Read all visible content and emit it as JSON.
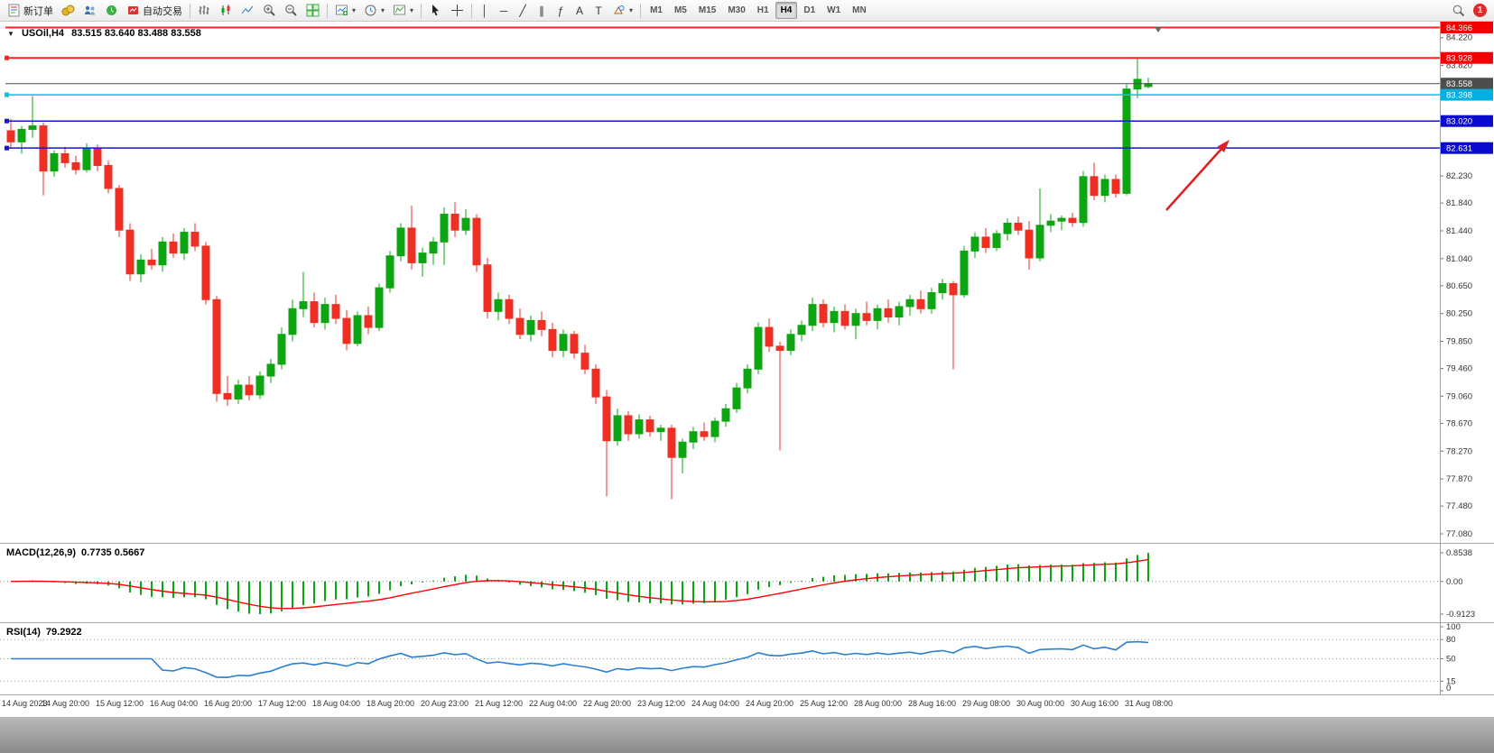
{
  "toolbar": {
    "new_order_label": "新订单",
    "auto_trading_label": "自动交易",
    "timeframes": [
      "M1",
      "M5",
      "M15",
      "M30",
      "H1",
      "H4",
      "D1",
      "W1",
      "MN"
    ],
    "active_timeframe": "H4",
    "line_tools": [
      {
        "name": "vertical-line-tool",
        "glyph": "│"
      },
      {
        "name": "horizontal-line-tool",
        "glyph": "─"
      },
      {
        "name": "trendline-tool",
        "glyph": "╱"
      },
      {
        "name": "equidistant-channel-tool",
        "glyph": "∥"
      },
      {
        "name": "fibonacci-tool",
        "glyph": "ƒ"
      },
      {
        "name": "text-tool",
        "glyph": "A"
      },
      {
        "name": "text-label-tool",
        "glyph": "T"
      }
    ],
    "notification_count": "1"
  },
  "chart_header": {
    "symbol_period": "USOil,H4",
    "ohlc": "83.515 83.640 83.488 83.558"
  },
  "indicators": {
    "macd_title": "MACD(12,26,9)",
    "macd_values": "0.7735 0.5667",
    "rsi_title": "RSI(14)",
    "rsi_value": "79.2922"
  },
  "chart_data": {
    "type": "candlestick",
    "symbol": "USOil",
    "timeframe": "H4",
    "price_range": [
      76.95,
      84.45
    ],
    "axis_ticks": [
      "84.220",
      "83.820",
      "82.230",
      "81.840",
      "81.440",
      "81.040",
      "80.650",
      "80.250",
      "79.850",
      "79.460",
      "79.060",
      "78.670",
      "78.270",
      "77.870",
      "77.480",
      "77.080"
    ],
    "levels": [
      {
        "price": 84.366,
        "label": "84.366",
        "color": "#ff2222",
        "badge": "#f40000",
        "width": 2,
        "marker": false
      },
      {
        "price": 83.928,
        "label": "83.928",
        "color": "#ff2222",
        "badge": "#f40000",
        "width": 2,
        "marker": true
      },
      {
        "price": 83.558,
        "label": "83.558",
        "color": "#4d4d4d",
        "badge": "#4d4d4d",
        "width": 1,
        "marker": false
      },
      {
        "price": 83.398,
        "label": "83.398",
        "color": "#00c3f5",
        "badge": "#00b0e0",
        "width": 1.5,
        "marker": true
      },
      {
        "price": 83.02,
        "label": "83.020",
        "color": "#1515dd",
        "badge": "#0b0bd0",
        "width": 1.5,
        "marker": true
      },
      {
        "price": 82.631,
        "label": "82.631",
        "color": "#1515dd",
        "badge": "#0b0bd0",
        "width": 1.5,
        "marker": true
      }
    ],
    "candles": [
      [
        82.88,
        83.05,
        82.62,
        82.72
      ],
      [
        82.72,
        82.95,
        82.55,
        82.9
      ],
      [
        82.9,
        83.38,
        82.78,
        82.95
      ],
      [
        82.95,
        83.0,
        81.95,
        82.3
      ],
      [
        82.3,
        82.6,
        82.22,
        82.55
      ],
      [
        82.55,
        82.65,
        82.35,
        82.42
      ],
      [
        82.42,
        82.52,
        82.25,
        82.32
      ],
      [
        82.32,
        82.7,
        82.28,
        82.62
      ],
      [
        82.62,
        82.68,
        82.3,
        82.38
      ],
      [
        82.38,
        82.45,
        81.98,
        82.05
      ],
      [
        82.05,
        82.1,
        81.35,
        81.45
      ],
      [
        81.45,
        81.55,
        80.72,
        80.82
      ],
      [
        80.82,
        81.1,
        80.7,
        81.02
      ],
      [
        81.02,
        81.18,
        80.88,
        80.95
      ],
      [
        80.95,
        81.35,
        80.85,
        81.28
      ],
      [
        81.28,
        81.4,
        81.05,
        81.12
      ],
      [
        81.12,
        81.48,
        81.02,
        81.42
      ],
      [
        81.42,
        81.55,
        81.15,
        81.22
      ],
      [
        81.22,
        81.28,
        80.38,
        80.45
      ],
      [
        80.45,
        80.5,
        78.98,
        79.1
      ],
      [
        79.1,
        79.35,
        78.92,
        79.02
      ],
      [
        79.02,
        79.3,
        78.95,
        79.22
      ],
      [
        79.22,
        79.35,
        79.0,
        79.08
      ],
      [
        79.08,
        79.42,
        79.02,
        79.35
      ],
      [
        79.35,
        79.6,
        79.25,
        79.52
      ],
      [
        79.52,
        80.05,
        79.45,
        79.95
      ],
      [
        79.95,
        80.45,
        79.85,
        80.32
      ],
      [
        80.32,
        80.85,
        80.2,
        80.42
      ],
      [
        80.42,
        80.55,
        80.05,
        80.12
      ],
      [
        80.12,
        80.48,
        80.02,
        80.38
      ],
      [
        80.38,
        80.52,
        80.1,
        80.18
      ],
      [
        80.18,
        80.3,
        79.72,
        79.82
      ],
      [
        79.82,
        80.28,
        79.78,
        80.22
      ],
      [
        80.22,
        80.35,
        79.95,
        80.05
      ],
      [
        80.05,
        80.68,
        80.0,
        80.62
      ],
      [
        80.62,
        81.15,
        80.55,
        81.08
      ],
      [
        81.08,
        81.55,
        81.0,
        81.48
      ],
      [
        81.48,
        81.8,
        80.88,
        80.98
      ],
      [
        80.98,
        81.2,
        80.78,
        81.12
      ],
      [
        81.12,
        81.35,
        80.95,
        81.28
      ],
      [
        81.28,
        81.78,
        80.95,
        81.68
      ],
      [
        81.68,
        81.85,
        81.35,
        81.45
      ],
      [
        81.45,
        81.75,
        81.38,
        81.62
      ],
      [
        81.62,
        81.68,
        80.85,
        80.95
      ],
      [
        80.95,
        81.05,
        80.18,
        80.28
      ],
      [
        80.28,
        80.55,
        80.15,
        80.45
      ],
      [
        80.45,
        80.52,
        80.1,
        80.18
      ],
      [
        80.18,
        80.32,
        79.88,
        79.95
      ],
      [
        79.95,
        80.22,
        79.85,
        80.15
      ],
      [
        80.15,
        80.28,
        79.92,
        80.02
      ],
      [
        80.02,
        80.12,
        79.62,
        79.72
      ],
      [
        79.72,
        80.02,
        79.62,
        79.95
      ],
      [
        79.95,
        80.0,
        79.6,
        79.68
      ],
      [
        79.68,
        79.8,
        79.38,
        79.45
      ],
      [
        79.45,
        79.52,
        78.95,
        79.05
      ],
      [
        79.05,
        79.15,
        77.62,
        78.42
      ],
      [
        78.42,
        78.88,
        78.35,
        78.78
      ],
      [
        78.78,
        78.85,
        78.42,
        78.52
      ],
      [
        78.52,
        78.8,
        78.45,
        78.72
      ],
      [
        78.72,
        78.78,
        78.48,
        78.55
      ],
      [
        78.55,
        78.65,
        78.42,
        78.6
      ],
      [
        78.6,
        78.65,
        77.58,
        78.18
      ],
      [
        78.18,
        78.45,
        77.95,
        78.4
      ],
      [
        78.4,
        78.62,
        78.3,
        78.55
      ],
      [
        78.55,
        78.68,
        78.42,
        78.48
      ],
      [
        78.48,
        78.75,
        78.4,
        78.7
      ],
      [
        78.7,
        78.95,
        78.62,
        78.88
      ],
      [
        78.88,
        79.25,
        78.82,
        79.18
      ],
      [
        79.18,
        79.52,
        79.1,
        79.45
      ],
      [
        79.45,
        80.12,
        79.38,
        80.05
      ],
      [
        80.05,
        80.18,
        79.7,
        79.78
      ],
      [
        79.78,
        79.85,
        78.28,
        79.72
      ],
      [
        79.72,
        80.02,
        79.65,
        79.95
      ],
      [
        79.95,
        80.15,
        79.85,
        80.08
      ],
      [
        80.08,
        80.48,
        80.0,
        80.38
      ],
      [
        80.38,
        80.45,
        80.05,
        80.12
      ],
      [
        80.12,
        80.35,
        79.98,
        80.28
      ],
      [
        80.28,
        80.38,
        80.02,
        80.08
      ],
      [
        80.08,
        80.32,
        79.88,
        80.25
      ],
      [
        80.25,
        80.42,
        80.08,
        80.15
      ],
      [
        80.15,
        80.38,
        80.02,
        80.32
      ],
      [
        80.32,
        80.45,
        80.12,
        80.2
      ],
      [
        80.2,
        80.42,
        80.08,
        80.35
      ],
      [
        80.35,
        80.52,
        80.22,
        80.45
      ],
      [
        80.45,
        80.58,
        80.25,
        80.32
      ],
      [
        80.32,
        80.62,
        80.25,
        80.55
      ],
      [
        80.55,
        80.75,
        80.45,
        80.68
      ],
      [
        80.68,
        80.72,
        79.45,
        80.52
      ],
      [
        80.52,
        81.22,
        80.48,
        81.15
      ],
      [
        81.15,
        81.42,
        81.05,
        81.35
      ],
      [
        81.35,
        81.48,
        81.12,
        81.2
      ],
      [
        81.2,
        81.45,
        81.15,
        81.4
      ],
      [
        81.4,
        81.62,
        81.3,
        81.55
      ],
      [
        81.55,
        81.65,
        81.38,
        81.45
      ],
      [
        81.45,
        81.58,
        80.88,
        81.05
      ],
      [
        81.05,
        82.05,
        81.0,
        81.52
      ],
      [
        81.52,
        81.68,
        81.42,
        81.58
      ],
      [
        81.58,
        81.66,
        81.45,
        81.62
      ],
      [
        81.62,
        81.7,
        81.5,
        81.56
      ],
      [
        81.56,
        82.3,
        81.5,
        82.22
      ],
      [
        82.22,
        82.42,
        81.88,
        81.95
      ],
      [
        81.95,
        82.25,
        81.85,
        82.18
      ],
      [
        82.18,
        82.25,
        81.92,
        81.98
      ],
      [
        81.98,
        83.55,
        81.95,
        83.48
      ],
      [
        83.48,
        83.92,
        83.35,
        83.62
      ],
      [
        83.515,
        83.64,
        83.488,
        83.558
      ]
    ],
    "label_every": 5,
    "time_labels": [
      "14 Aug 2023",
      "14 Aug 20:00",
      "15 Aug 12:00",
      "16 Aug 04:00",
      "16 Aug 20:00",
      "17 Aug 12:00",
      "18 Aug 04:00",
      "18 Aug 20:00",
      "20 Aug 23:00",
      "21 Aug 12:00",
      "22 Aug 04:00",
      "22 Aug 20:00",
      "23 Aug 12:00",
      "24 Aug 04:00",
      "24 Aug 20:00",
      "25 Aug 12:00",
      "28 Aug 00:00",
      "28 Aug 16:00",
      "29 Aug 08:00",
      "30 Aug 00:00",
      "30 Aug 16:00",
      "31 Aug 08:00"
    ],
    "macd": {
      "params": "12,26,9",
      "value": 0.7735,
      "signal_value": 0.5667,
      "scale_labels": [
        "0.8538",
        "0.00",
        "-0.9123"
      ]
    },
    "rsi": {
      "period": 14,
      "value": 79.2922,
      "scale": [
        {
          "v": 100,
          "label": "100"
        },
        {
          "v": 80,
          "label": "80"
        },
        {
          "v": 50,
          "label": "50"
        },
        {
          "v": 15,
          "label": "15"
        },
        {
          "v": 0,
          "label": "0"
        }
      ],
      "level_lines": [
        80,
        50,
        15
      ]
    },
    "colors": {
      "up": "#0da511",
      "down": "#ee3024",
      "arrow": "#dd2020",
      "macd_hist": "#0da511",
      "macd_signal": "#ff0000",
      "rsi_line": "#2a7fd0",
      "level_text": "#ffffff"
    }
  }
}
